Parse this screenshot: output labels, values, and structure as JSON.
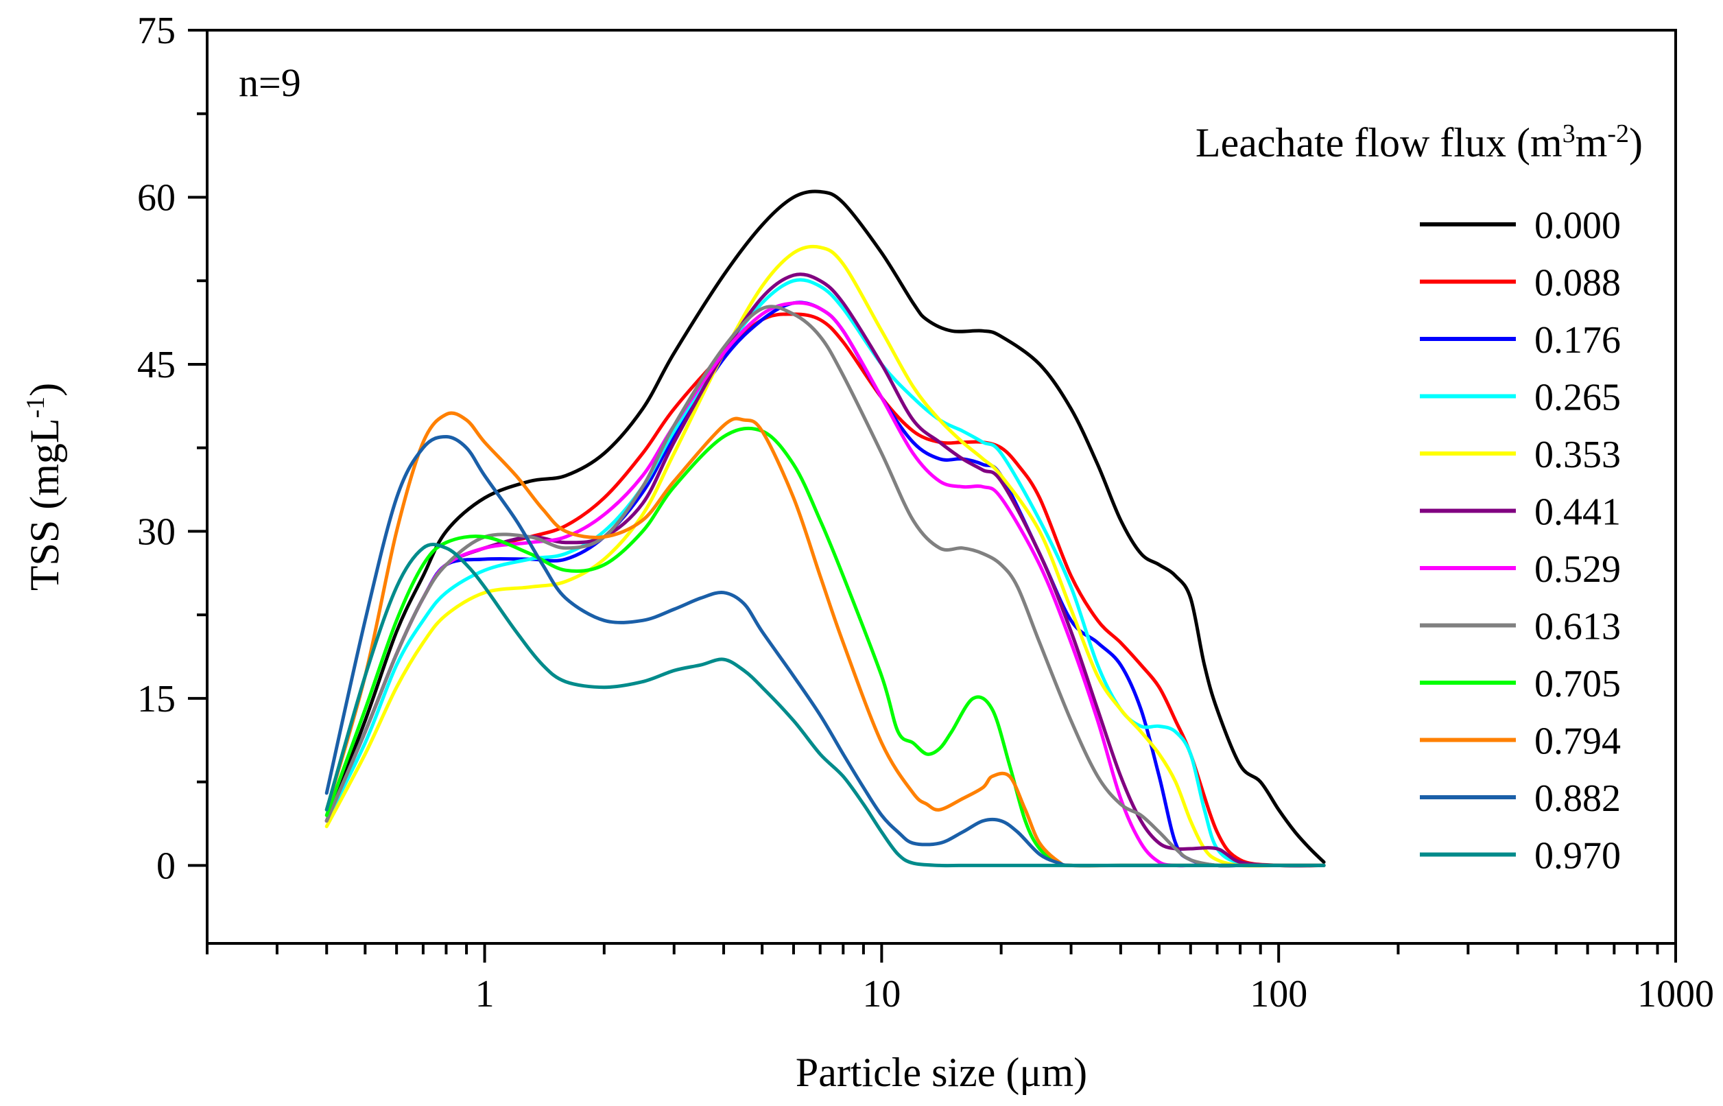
{
  "chart_data": {
    "type": "line",
    "annotation": "n=9",
    "xlabel": "Particle size (μm)",
    "ylabel": {
      "main": "TSS (mgL",
      "sup": "-1",
      "close": ")"
    },
    "x_scale": "log",
    "xlim": [
      0.2,
      1000
    ],
    "ylim": [
      -7,
      75
    ],
    "x_ticks": [
      1,
      10,
      100,
      1000
    ],
    "x_tick_labels": [
      "1",
      "10",
      "100",
      "1000"
    ],
    "y_ticks": [
      0,
      15,
      30,
      45,
      60,
      75
    ],
    "y_tick_labels": [
      "0",
      "15",
      "30",
      "45",
      "60",
      "75"
    ],
    "legend": {
      "title": {
        "main": "Leachate flow flux (m",
        "sup1": "3",
        "mid": "m",
        "sup2": "-2",
        "close": ")"
      },
      "placement": "right"
    },
    "grid": false,
    "series": [
      {
        "name": "0.000",
        "color": "#000000",
        "x": [
          0.4,
          0.5,
          0.6,
          0.7,
          0.8,
          1.0,
          1.3,
          1.6,
          2.0,
          2.5,
          3.0,
          4.0,
          5.0,
          6.0,
          7.0,
          8.0,
          10,
          12,
          13,
          15,
          18,
          20,
          25,
          30,
          35,
          40,
          45,
          50,
          55,
          60,
          65,
          70,
          80,
          90,
          100,
          110,
          120,
          130
        ],
        "y": [
          4,
          13,
          21,
          26,
          30,
          33,
          34.5,
          35,
          37,
          41,
          46,
          53,
          57.5,
          60,
          60.5,
          59.5,
          55,
          50.5,
          49,
          48,
          48,
          47.5,
          45,
          41,
          36,
          31,
          28,
          27,
          26,
          24,
          18,
          14,
          9,
          7.5,
          5,
          3,
          1.5,
          0.3
        ]
      },
      {
        "name": "0.088",
        "color": "#ff0000",
        "x": [
          0.4,
          0.5,
          0.6,
          0.7,
          0.8,
          1.0,
          1.3,
          1.6,
          2.0,
          2.5,
          3.0,
          4.0,
          5.0,
          6.0,
          7.0,
          8.0,
          10,
          12,
          14,
          16,
          18,
          20,
          22,
          25,
          30,
          35,
          40,
          45,
          50,
          55,
          60,
          70,
          80,
          100,
          130
        ],
        "y": [
          4,
          12,
          19,
          24,
          27,
          28.5,
          29.5,
          30.5,
          33,
          37,
          41,
          46,
          49,
          49.5,
          49,
          47,
          42,
          39,
          38,
          38,
          38,
          37.5,
          36,
          33,
          26,
          22,
          20,
          18,
          16,
          13,
          10,
          3,
          0.5,
          0,
          0
        ]
      },
      {
        "name": "0.176",
        "color": "#0000ff",
        "x": [
          0.4,
          0.5,
          0.6,
          0.7,
          0.8,
          1.0,
          1.3,
          1.6,
          2.0,
          2.5,
          3.0,
          4.0,
          5.0,
          6.0,
          7.0,
          8.0,
          10,
          12,
          14,
          16,
          18,
          20,
          25,
          30,
          35,
          40,
          45,
          50,
          55,
          60,
          70,
          80,
          100,
          130
        ],
        "y": [
          4,
          12,
          19,
          24,
          27,
          27.5,
          27.5,
          27.5,
          29.5,
          33.5,
          38.5,
          45.5,
          49,
          50.5,
          50,
          48,
          42,
          38,
          36.5,
          36.5,
          36,
          35,
          28,
          22,
          20,
          18,
          14,
          8,
          2,
          0.5,
          0,
          0,
          0,
          0
        ]
      },
      {
        "name": "0.265",
        "color": "#00ffff",
        "x": [
          0.4,
          0.5,
          0.6,
          0.7,
          0.8,
          1.0,
          1.3,
          1.6,
          2.0,
          2.5,
          3.0,
          4.0,
          5.0,
          6.0,
          7.0,
          8.0,
          10,
          12,
          14,
          16,
          18,
          20,
          25,
          30,
          35,
          40,
          45,
          50,
          55,
          60,
          65,
          70,
          80,
          100,
          130
        ],
        "y": [
          4,
          11,
          18,
          22,
          24.5,
          26.5,
          27.5,
          28,
          30,
          34,
          39,
          46,
          50.5,
          52.5,
          52,
          50,
          45,
          42,
          40,
          39,
          38,
          37,
          31,
          25,
          18,
          14,
          12.5,
          12.5,
          12,
          10,
          5,
          1.5,
          0.2,
          0,
          0
        ]
      },
      {
        "name": "0.353",
        "color": "#ffff00",
        "x": [
          0.4,
          0.5,
          0.6,
          0.7,
          0.8,
          1.0,
          1.3,
          1.6,
          2.0,
          2.5,
          3.0,
          4.0,
          5.0,
          6.0,
          7.0,
          8.0,
          10,
          12,
          14,
          16,
          18,
          20,
          25,
          30,
          35,
          40,
          45,
          50,
          55,
          60,
          65,
          70,
          80,
          100,
          130
        ],
        "y": [
          3.5,
          10,
          16,
          20,
          22.5,
          24.5,
          25,
          25.5,
          27.5,
          31.5,
          37,
          46,
          52,
          55,
          55.5,
          54,
          48,
          43,
          40,
          38,
          36.5,
          35,
          30,
          23,
          17,
          14,
          12,
          10,
          7.5,
          4,
          1.5,
          0.5,
          0,
          0,
          0
        ]
      },
      {
        "name": "0.441",
        "color": "#800080",
        "x": [
          0.4,
          0.5,
          0.6,
          0.7,
          0.8,
          1.0,
          1.3,
          1.6,
          2.0,
          2.5,
          3.0,
          4.0,
          5.0,
          6.0,
          7.0,
          8.0,
          10,
          12,
          14,
          16,
          18,
          20,
          25,
          30,
          35,
          40,
          45,
          50,
          55,
          60,
          70,
          80,
          100,
          130
        ],
        "y": [
          4,
          12,
          19,
          24,
          27,
          28.5,
          29.5,
          29,
          29.5,
          32.5,
          38,
          46,
          51,
          53,
          52.5,
          50.5,
          45,
          40,
          38,
          36.5,
          35.5,
          34.5,
          28,
          21,
          14,
          8,
          4,
          2,
          1.5,
          1.5,
          1.5,
          0.3,
          0,
          0
        ]
      },
      {
        "name": "0.529",
        "color": "#ff00ff",
        "x": [
          0.4,
          0.5,
          0.6,
          0.7,
          0.8,
          1.0,
          1.3,
          1.6,
          2.0,
          2.5,
          3.0,
          4.0,
          5.0,
          6.0,
          7.0,
          8.0,
          10,
          12,
          14,
          16,
          18,
          20,
          25,
          30,
          35,
          40,
          45,
          50,
          55,
          60,
          70,
          80,
          100,
          130
        ],
        "y": [
          4,
          12,
          19,
          24,
          27,
          28.5,
          29,
          29.5,
          31.5,
          35,
          39.5,
          46,
          49.5,
          50.5,
          50,
          48,
          42,
          37,
          34.5,
          34,
          34,
          33,
          27,
          20,
          13,
          6,
          2,
          0.3,
          0,
          0,
          0,
          0,
          0,
          0
        ]
      },
      {
        "name": "0.613",
        "color": "#808080",
        "x": [
          0.4,
          0.5,
          0.6,
          0.7,
          0.8,
          1.0,
          1.3,
          1.6,
          2.0,
          2.5,
          3.0,
          4.0,
          5.0,
          6.0,
          7.0,
          8.0,
          10,
          12,
          14,
          16,
          18,
          20,
          22,
          25,
          30,
          35,
          40,
          45,
          50,
          55,
          60,
          70,
          80,
          100,
          130
        ],
        "y": [
          4,
          12,
          19,
          24,
          27,
          29.5,
          29.5,
          28.5,
          29.5,
          34,
          39.5,
          46.5,
          50,
          49.5,
          47.5,
          44,
          37,
          31,
          28.5,
          28.5,
          28,
          27,
          25,
          20,
          13,
          8,
          5.5,
          4.5,
          3,
          1.5,
          0.5,
          0,
          0,
          0,
          0
        ]
      },
      {
        "name": "0.705",
        "color": "#00ff00",
        "x": [
          0.4,
          0.5,
          0.6,
          0.7,
          0.8,
          1.0,
          1.3,
          1.6,
          2.0,
          2.5,
          3.0,
          4.0,
          5.0,
          6.0,
          7.0,
          8.0,
          10,
          11,
          12,
          13,
          14,
          15,
          17,
          19,
          21,
          23,
          25,
          28,
          30,
          40,
          60,
          100,
          130
        ],
        "y": [
          4.5,
          14,
          22,
          27,
          29,
          29.5,
          28,
          26.5,
          27,
          30,
          34,
          38.5,
          39,
          36,
          31,
          26,
          17,
          12,
          11,
          10,
          10.5,
          12,
          15,
          14,
          9,
          4,
          1.5,
          0.2,
          0,
          0,
          0,
          0,
          0
        ]
      },
      {
        "name": "0.794",
        "color": "#ff8000",
        "x": [
          0.4,
          0.5,
          0.6,
          0.7,
          0.8,
          0.9,
          1.0,
          1.2,
          1.4,
          1.6,
          2.0,
          2.5,
          3.0,
          4.0,
          4.5,
          5.0,
          6.0,
          7.0,
          8.0,
          10,
          12,
          13,
          14,
          16,
          18,
          19,
          21,
          23,
          25,
          28,
          30,
          40,
          60,
          100,
          130
        ],
        "y": [
          5,
          17,
          30,
          38,
          40.5,
          40,
          38,
          35,
          32,
          30,
          29.5,
          31,
          34.5,
          39.5,
          40,
          39,
          33,
          26,
          20,
          11,
          6.5,
          5.5,
          5,
          6,
          7,
          8,
          8,
          5,
          2,
          0.3,
          0,
          0,
          0,
          0,
          0
        ]
      },
      {
        "name": "0.882",
        "color": "#1a5fa8",
        "x": [
          0.4,
          0.5,
          0.6,
          0.7,
          0.8,
          0.9,
          1.0,
          1.2,
          1.4,
          1.6,
          2.0,
          2.5,
          3.0,
          3.5,
          4.0,
          4.5,
          5.0,
          6.0,
          7.0,
          8.0,
          9.0,
          10,
          11,
          12,
          14,
          16,
          18,
          20,
          22,
          25,
          28,
          30,
          40,
          60,
          100,
          130
        ],
        "y": [
          6.5,
          22,
          33,
          37.5,
          38.5,
          37.5,
          35,
          31,
          27,
          24,
          22,
          22,
          23,
          24,
          24.5,
          23.5,
          21,
          17,
          13.5,
          10,
          7,
          4.5,
          3,
          2,
          2,
          3,
          4,
          4,
          3,
          1,
          0.2,
          0,
          0,
          0,
          0,
          0
        ]
      },
      {
        "name": "0.970",
        "color": "#008b8b",
        "x": [
          0.4,
          0.5,
          0.6,
          0.7,
          0.8,
          0.9,
          1.0,
          1.2,
          1.4,
          1.6,
          2.0,
          2.5,
          3.0,
          3.5,
          4.0,
          4.5,
          5.0,
          6.0,
          7.0,
          8.0,
          9.0,
          10,
          11,
          12,
          14,
          16,
          20,
          30,
          50,
          100,
          130
        ],
        "y": [
          5,
          17,
          25,
          28.5,
          28.5,
          27,
          25,
          21,
          18,
          16.5,
          16,
          16.5,
          17.5,
          18,
          18.5,
          17.5,
          16,
          13,
          10,
          8,
          5.5,
          3,
          1,
          0.2,
          0,
          0,
          0,
          0,
          0,
          0,
          0
        ]
      }
    ]
  }
}
